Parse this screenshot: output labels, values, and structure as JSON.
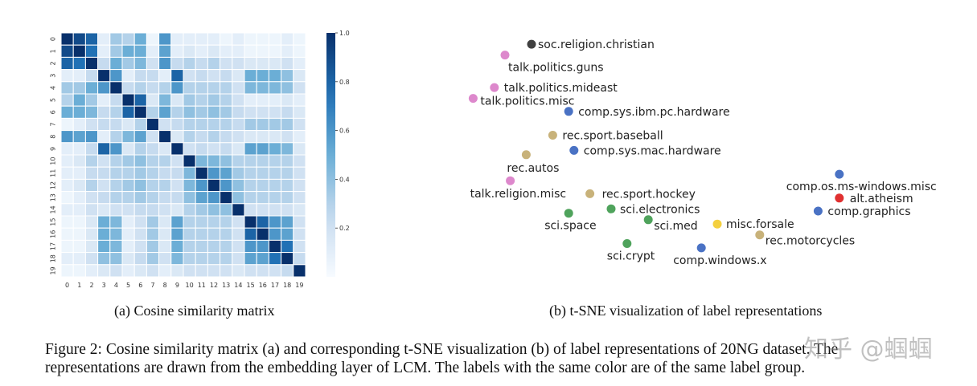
{
  "chart_data": [
    {
      "type": "heatmap",
      "title": "",
      "x_labels": [
        "0",
        "1",
        "2",
        "3",
        "4",
        "5",
        "6",
        "7",
        "8",
        "9",
        "10",
        "11",
        "12",
        "13",
        "14",
        "15",
        "16",
        "17",
        "18",
        "19"
      ],
      "y_labels": [
        "0",
        "1",
        "2",
        "3",
        "4",
        "5",
        "6",
        "7",
        "8",
        "9",
        "10",
        "11",
        "12",
        "13",
        "14",
        "15",
        "16",
        "17",
        "18",
        "19"
      ],
      "colorbar_ticks": [
        "1.0",
        "0.8",
        "0.6",
        "0.4",
        "0.2"
      ],
      "colorbar_tick_values": [
        1.0,
        0.8,
        0.6,
        0.4,
        0.2
      ],
      "colorbar_range": [
        0.0,
        1.0
      ],
      "colormap": "Blues",
      "matrix": [
        [
          1.0,
          0.9,
          0.8,
          0.1,
          0.35,
          0.3,
          0.5,
          0.05,
          0.6,
          0.1,
          0.1,
          0.1,
          0.1,
          0.05,
          0.1,
          0.05,
          0.05,
          0.05,
          0.1,
          0.05
        ],
        [
          0.9,
          1.0,
          0.75,
          0.1,
          0.35,
          0.5,
          0.5,
          0.1,
          0.55,
          0.1,
          0.15,
          0.1,
          0.15,
          0.1,
          0.1,
          0.05,
          0.05,
          0.05,
          0.1,
          0.05
        ],
        [
          0.8,
          0.75,
          1.0,
          0.25,
          0.5,
          0.35,
          0.45,
          0.2,
          0.6,
          0.25,
          0.3,
          0.25,
          0.3,
          0.2,
          0.2,
          0.15,
          0.15,
          0.15,
          0.2,
          0.1
        ],
        [
          0.1,
          0.1,
          0.25,
          1.0,
          0.6,
          0.1,
          0.25,
          0.25,
          0.1,
          0.8,
          0.2,
          0.25,
          0.2,
          0.25,
          0.15,
          0.5,
          0.5,
          0.5,
          0.4,
          0.15
        ],
        [
          0.35,
          0.35,
          0.5,
          0.6,
          1.0,
          0.25,
          0.3,
          0.25,
          0.3,
          0.6,
          0.3,
          0.3,
          0.3,
          0.3,
          0.2,
          0.45,
          0.45,
          0.45,
          0.4,
          0.2
        ],
        [
          0.3,
          0.5,
          0.35,
          0.1,
          0.25,
          1.0,
          0.8,
          0.15,
          0.45,
          0.15,
          0.35,
          0.3,
          0.35,
          0.3,
          0.2,
          0.1,
          0.1,
          0.1,
          0.15,
          0.1
        ],
        [
          0.5,
          0.5,
          0.45,
          0.25,
          0.3,
          0.8,
          1.0,
          0.3,
          0.55,
          0.3,
          0.4,
          0.35,
          0.4,
          0.35,
          0.25,
          0.2,
          0.2,
          0.2,
          0.25,
          0.15
        ],
        [
          0.05,
          0.1,
          0.2,
          0.25,
          0.25,
          0.15,
          0.3,
          1.0,
          0.2,
          0.25,
          0.3,
          0.3,
          0.3,
          0.3,
          0.25,
          0.35,
          0.35,
          0.35,
          0.35,
          0.2
        ],
        [
          0.6,
          0.55,
          0.6,
          0.1,
          0.3,
          0.45,
          0.55,
          0.2,
          1.0,
          0.15,
          0.3,
          0.25,
          0.3,
          0.25,
          0.2,
          0.15,
          0.15,
          0.15,
          0.2,
          0.1
        ],
        [
          0.1,
          0.1,
          0.25,
          0.8,
          0.6,
          0.15,
          0.3,
          0.25,
          0.15,
          1.0,
          0.2,
          0.25,
          0.2,
          0.25,
          0.15,
          0.55,
          0.55,
          0.5,
          0.45,
          0.15
        ],
        [
          0.1,
          0.15,
          0.3,
          0.2,
          0.3,
          0.35,
          0.4,
          0.3,
          0.3,
          0.2,
          1.0,
          0.45,
          0.45,
          0.4,
          0.3,
          0.3,
          0.3,
          0.3,
          0.3,
          0.2
        ],
        [
          0.1,
          0.1,
          0.25,
          0.25,
          0.3,
          0.3,
          0.35,
          0.3,
          0.25,
          0.25,
          0.45,
          1.0,
          0.6,
          0.55,
          0.35,
          0.3,
          0.3,
          0.3,
          0.3,
          0.2
        ],
        [
          0.1,
          0.15,
          0.3,
          0.2,
          0.3,
          0.35,
          0.4,
          0.3,
          0.3,
          0.2,
          0.45,
          0.6,
          1.0,
          0.6,
          0.4,
          0.3,
          0.3,
          0.3,
          0.3,
          0.2
        ],
        [
          0.05,
          0.1,
          0.2,
          0.25,
          0.3,
          0.3,
          0.35,
          0.3,
          0.25,
          0.25,
          0.4,
          0.55,
          0.6,
          1.0,
          0.4,
          0.3,
          0.3,
          0.3,
          0.3,
          0.2
        ],
        [
          0.1,
          0.1,
          0.2,
          0.15,
          0.2,
          0.2,
          0.25,
          0.25,
          0.2,
          0.15,
          0.3,
          0.35,
          0.4,
          0.4,
          1.0,
          0.2,
          0.2,
          0.2,
          0.2,
          0.15
        ],
        [
          0.05,
          0.05,
          0.15,
          0.5,
          0.45,
          0.1,
          0.2,
          0.35,
          0.15,
          0.55,
          0.3,
          0.3,
          0.3,
          0.3,
          0.2,
          1.0,
          0.8,
          0.6,
          0.55,
          0.2
        ],
        [
          0.05,
          0.05,
          0.15,
          0.5,
          0.45,
          0.1,
          0.2,
          0.35,
          0.15,
          0.55,
          0.3,
          0.3,
          0.3,
          0.3,
          0.2,
          0.8,
          1.0,
          0.6,
          0.55,
          0.2
        ],
        [
          0.05,
          0.05,
          0.15,
          0.5,
          0.45,
          0.1,
          0.2,
          0.35,
          0.15,
          0.5,
          0.3,
          0.3,
          0.3,
          0.3,
          0.2,
          0.6,
          0.6,
          1.0,
          0.75,
          0.2
        ],
        [
          0.1,
          0.1,
          0.2,
          0.4,
          0.4,
          0.15,
          0.25,
          0.35,
          0.2,
          0.45,
          0.3,
          0.3,
          0.3,
          0.3,
          0.2,
          0.55,
          0.55,
          0.75,
          1.0,
          0.25
        ],
        [
          0.05,
          0.05,
          0.1,
          0.15,
          0.2,
          0.1,
          0.15,
          0.2,
          0.1,
          0.15,
          0.2,
          0.2,
          0.2,
          0.2,
          0.15,
          0.2,
          0.2,
          0.2,
          0.25,
          1.0
        ]
      ]
    },
    {
      "type": "scatter",
      "title": "",
      "axes": "hidden",
      "groups": {
        "religion_politics": "#dd88cc",
        "dark": "#404040",
        "comp": "#4a72c4",
        "rec": "#c8b27a",
        "sci": "#4fa35c",
        "misc": "#f4d03f",
        "atheism": "#e03030"
      },
      "points": [
        {
          "label": "soc.religion.christian",
          "x": 0.1,
          "y": 0.97,
          "color": "#404040"
        },
        {
          "label": "talk.politics.guns",
          "x": 0.05,
          "y": 0.92,
          "color": "#dd88cc"
        },
        {
          "label": "talk.politics.mideast",
          "x": 0.03,
          "y": 0.77,
          "color": "#dd88cc"
        },
        {
          "label": "talk.politics.misc",
          "x": -0.01,
          "y": 0.72,
          "color": "#dd88cc"
        },
        {
          "label": "comp.sys.ibm.pc.hardware",
          "x": 0.17,
          "y": 0.66,
          "color": "#4a72c4"
        },
        {
          "label": "rec.sport.baseball",
          "x": 0.14,
          "y": 0.55,
          "color": "#c8b27a"
        },
        {
          "label": "comp.sys.mac.hardware",
          "x": 0.18,
          "y": 0.48,
          "color": "#4a72c4"
        },
        {
          "label": "rec.autos",
          "x": 0.09,
          "y": 0.46,
          "color": "#c8b27a"
        },
        {
          "label": "talk.religion.misc",
          "x": 0.06,
          "y": 0.34,
          "color": "#dd88cc"
        },
        {
          "label": "rec.sport.hockey",
          "x": 0.21,
          "y": 0.28,
          "color": "#c8b27a"
        },
        {
          "label": "sci.space",
          "x": 0.17,
          "y": 0.19,
          "color": "#4fa35c"
        },
        {
          "label": "sci.electronics",
          "x": 0.25,
          "y": 0.21,
          "color": "#4fa35c"
        },
        {
          "label": "sci.med",
          "x": 0.32,
          "y": 0.16,
          "color": "#4fa35c"
        },
        {
          "label": "sci.crypt",
          "x": 0.28,
          "y": 0.05,
          "color": "#4fa35c"
        },
        {
          "label": "misc.forsale",
          "x": 0.45,
          "y": 0.14,
          "color": "#f4d03f"
        },
        {
          "label": "comp.windows.x",
          "x": 0.42,
          "y": 0.03,
          "color": "#4a72c4"
        },
        {
          "label": "rec.motorcycles",
          "x": 0.53,
          "y": 0.09,
          "color": "#c8b27a"
        },
        {
          "label": "comp.os.ms-windows.misc",
          "x": 0.68,
          "y": 0.37,
          "color": "#4a72c4"
        },
        {
          "label": "alt.atheism",
          "x": 0.68,
          "y": 0.26,
          "color": "#e03030"
        },
        {
          "label": "comp.graphics",
          "x": 0.64,
          "y": 0.2,
          "color": "#4a72c4"
        }
      ]
    }
  ],
  "captions": {
    "sub_a": "(a) Cosine similarity matrix",
    "sub_b": "(b) t-SNE visualization of label representations",
    "figure_line1": "Figure 2: Cosine similarity matrix (a) and corresponding t-SNE visualization (b) of label representations of 20NG dataset. The",
    "figure_line2": "representations are drawn from the embedding layer of LCM. The labels with the same color are of the same label group."
  },
  "watermark": "知乎 @蝈蝈"
}
